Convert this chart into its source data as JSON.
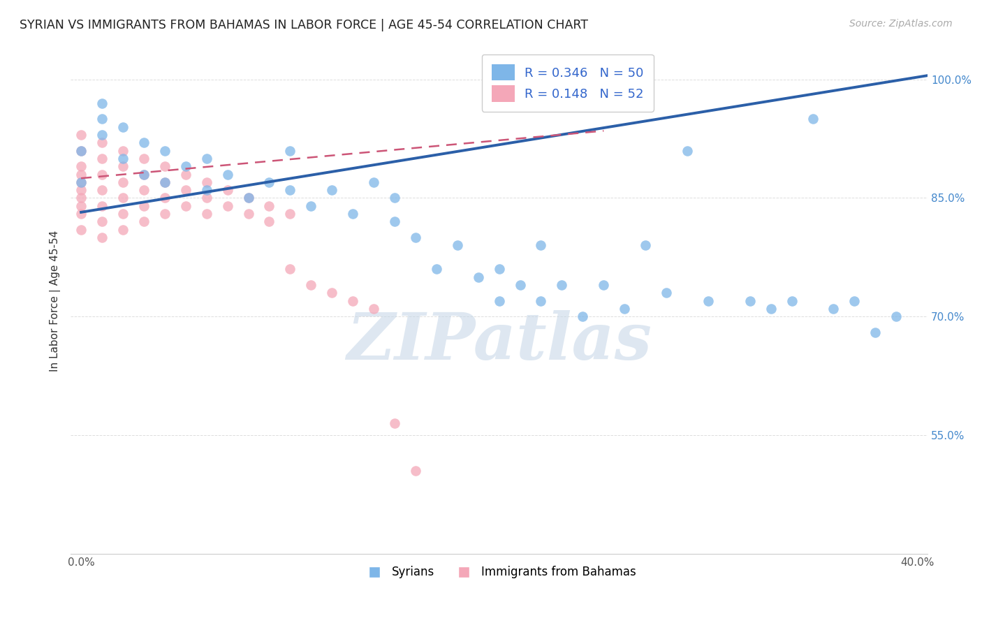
{
  "title": "SYRIAN VS IMMIGRANTS FROM BAHAMAS IN LABOR FORCE | AGE 45-54 CORRELATION CHART",
  "source": "Source: ZipAtlas.com",
  "ylabel": "In Labor Force | Age 45-54",
  "xlim": [
    -0.005,
    0.405
  ],
  "ylim": [
    0.4,
    1.04
  ],
  "xtick_positions": [
    0.0,
    0.4
  ],
  "xtick_labels": [
    "0.0%",
    "40.0%"
  ],
  "ytick_positions": [
    0.55,
    0.7,
    0.85,
    1.0
  ],
  "ytick_labels": [
    "55.0%",
    "70.0%",
    "85.0%",
    "100.0%"
  ],
  "blue_R": 0.346,
  "blue_N": 50,
  "pink_R": 0.148,
  "pink_N": 52,
  "blue_color": "#7EB6E8",
  "pink_color": "#F4A7B8",
  "blue_line_color": "#2B5FA8",
  "pink_line_color": "#CC5577",
  "blue_scatter_x": [
    0.0,
    0.0,
    0.01,
    0.01,
    0.01,
    0.02,
    0.02,
    0.03,
    0.03,
    0.04,
    0.04,
    0.05,
    0.06,
    0.06,
    0.07,
    0.08,
    0.09,
    0.1,
    0.1,
    0.11,
    0.12,
    0.13,
    0.14,
    0.15,
    0.15,
    0.16,
    0.17,
    0.18,
    0.19,
    0.2,
    0.2,
    0.21,
    0.22,
    0.22,
    0.23,
    0.24,
    0.25,
    0.26,
    0.27,
    0.28,
    0.29,
    0.3,
    0.32,
    0.33,
    0.34,
    0.35,
    0.36,
    0.37,
    0.38,
    0.39
  ],
  "blue_scatter_y": [
    0.91,
    0.87,
    0.93,
    0.95,
    0.97,
    0.9,
    0.94,
    0.88,
    0.92,
    0.87,
    0.91,
    0.89,
    0.86,
    0.9,
    0.88,
    0.85,
    0.87,
    0.86,
    0.91,
    0.84,
    0.86,
    0.83,
    0.87,
    0.82,
    0.85,
    0.8,
    0.76,
    0.79,
    0.75,
    0.72,
    0.76,
    0.74,
    0.72,
    0.79,
    0.74,
    0.7,
    0.74,
    0.71,
    0.79,
    0.73,
    0.91,
    0.72,
    0.72,
    0.71,
    0.72,
    0.95,
    0.71,
    0.72,
    0.68,
    0.7
  ],
  "pink_scatter_x": [
    0.0,
    0.0,
    0.0,
    0.0,
    0.0,
    0.0,
    0.0,
    0.0,
    0.0,
    0.0,
    0.01,
    0.01,
    0.01,
    0.01,
    0.01,
    0.01,
    0.01,
    0.02,
    0.02,
    0.02,
    0.02,
    0.02,
    0.02,
    0.03,
    0.03,
    0.03,
    0.03,
    0.03,
    0.04,
    0.04,
    0.04,
    0.04,
    0.05,
    0.05,
    0.05,
    0.06,
    0.06,
    0.06,
    0.07,
    0.07,
    0.08,
    0.08,
    0.09,
    0.09,
    0.1,
    0.1,
    0.11,
    0.12,
    0.13,
    0.14,
    0.15,
    0.16
  ],
  "pink_scatter_y": [
    0.93,
    0.91,
    0.89,
    0.87,
    0.85,
    0.83,
    0.81,
    0.88,
    0.86,
    0.84,
    0.92,
    0.9,
    0.88,
    0.86,
    0.84,
    0.82,
    0.8,
    0.91,
    0.89,
    0.87,
    0.85,
    0.83,
    0.81,
    0.9,
    0.88,
    0.86,
    0.84,
    0.82,
    0.89,
    0.87,
    0.85,
    0.83,
    0.88,
    0.86,
    0.84,
    0.87,
    0.85,
    0.83,
    0.86,
    0.84,
    0.85,
    0.83,
    0.84,
    0.82,
    0.83,
    0.76,
    0.74,
    0.73,
    0.72,
    0.71,
    0.565,
    0.505
  ],
  "blue_trend_x": [
    0.0,
    0.405
  ],
  "blue_trend_y": [
    0.832,
    1.005
  ],
  "pink_trend_x": [
    0.0,
    0.25
  ],
  "pink_trend_y": [
    0.875,
    0.935
  ],
  "grid_color": "#dddddd",
  "grid_yticks": [
    0.55,
    0.7,
    0.85,
    1.0
  ],
  "watermark_text": "ZIPatlas",
  "watermark_color": "#c8d8e8"
}
